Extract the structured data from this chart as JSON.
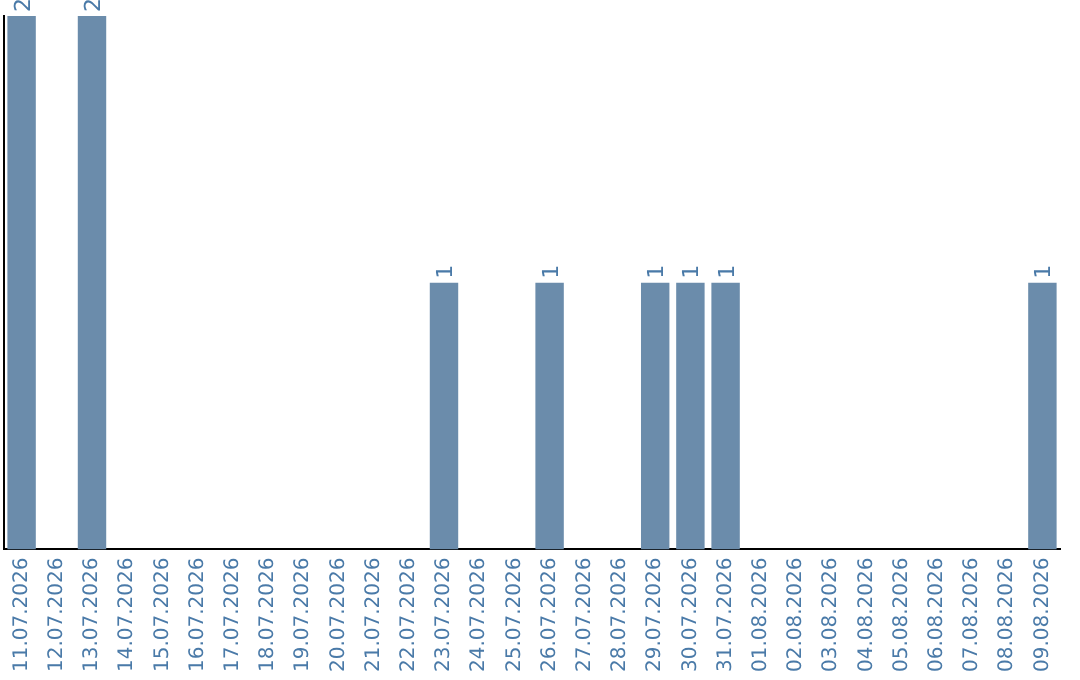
{
  "chart_data": {
    "type": "bar",
    "categories": [
      "11.07.2026",
      "12.07.2026",
      "13.07.2026",
      "14.07.2026",
      "15.07.2026",
      "16.07.2026",
      "17.07.2026",
      "18.07.2026",
      "19.07.2026",
      "20.07.2026",
      "21.07.2026",
      "22.07.2026",
      "23.07.2026",
      "24.07.2026",
      "25.07.2026",
      "26.07.2026",
      "27.07.2026",
      "28.07.2026",
      "29.07.2026",
      "30.07.2026",
      "31.07.2026",
      "01.08.2026",
      "02.08.2026",
      "03.08.2026",
      "04.08.2026",
      "05.08.2026",
      "06.08.2026",
      "07.08.2026",
      "08.08.2026",
      "09.08.2026"
    ],
    "values": [
      2,
      0,
      2,
      0,
      0,
      0,
      0,
      0,
      0,
      0,
      0,
      0,
      1,
      0,
      0,
      1,
      0,
      0,
      1,
      1,
      1,
      0,
      0,
      0,
      0,
      0,
      0,
      0,
      0,
      1
    ],
    "value_labels": [
      "2",
      null,
      "2",
      null,
      null,
      null,
      null,
      null,
      null,
      null,
      null,
      null,
      "1",
      null,
      null,
      "1",
      null,
      null,
      "1",
      "1",
      "1",
      null,
      null,
      null,
      null,
      null,
      null,
      null,
      null,
      "1"
    ],
    "color": "#6b8cab",
    "ylim": [
      0,
      2
    ],
    "grid": false,
    "legend": false,
    "tick_labels": "x"
  }
}
